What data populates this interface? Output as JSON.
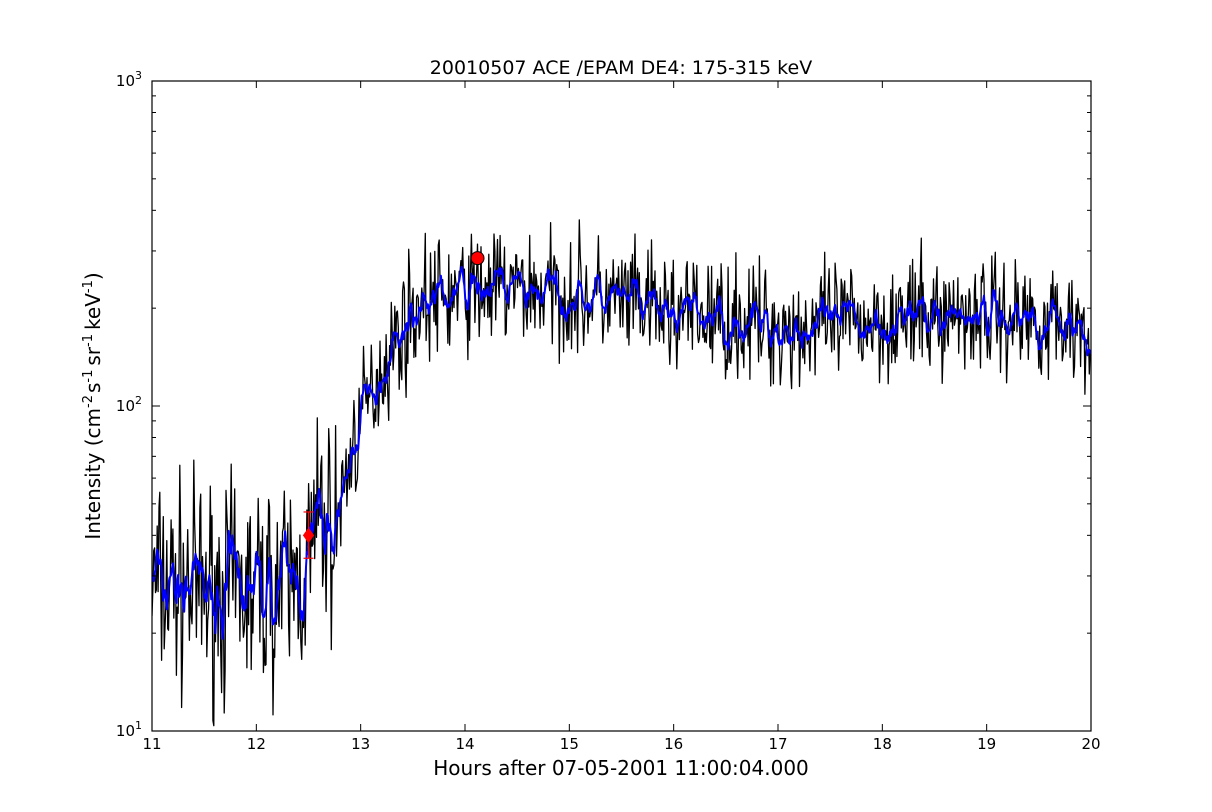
{
  "chart_data": {
    "type": "line",
    "title": "20010507 ACE /EPAM DE4: 175-315 keV",
    "xlabel": "Hours after 07-05-2001 11:00:04.000",
    "ylabel_main": "Intensity (cm",
    "ylabel_parts": [
      "-2",
      "s",
      "-1",
      "sr",
      "-1",
      "keV",
      "-1",
      ")"
    ],
    "xlim": [
      11,
      20
    ],
    "ylim": [
      10,
      1000
    ],
    "yscale": "log",
    "xticks": [
      "11",
      "12",
      "13",
      "14",
      "15",
      "16",
      "17",
      "18",
      "19",
      "20"
    ],
    "yticks": [
      {
        "base": "10",
        "exp": "1"
      },
      {
        "base": "10",
        "exp": "2"
      },
      {
        "base": "10",
        "exp": "3"
      }
    ],
    "grid": false,
    "legend": "none",
    "colors": {
      "raw": "#000000",
      "smoothed": "#0000ff",
      "markers": "#ff0000"
    },
    "series": [
      {
        "style": "raw-jagged",
        "x": [
          11.0,
          11.25,
          11.5,
          11.75,
          12.0,
          12.2,
          12.4,
          12.5,
          12.6,
          12.75,
          12.9,
          13.0,
          13.15,
          13.3,
          13.45,
          13.6,
          13.8,
          14.0,
          14.2,
          14.5,
          14.8,
          15.0,
          15.3,
          15.6,
          15.9,
          16.2,
          16.5,
          16.8,
          17.0,
          17.2,
          17.4,
          17.7,
          18.0,
          18.3,
          18.6,
          18.9,
          19.2,
          19.5,
          19.8,
          20.0
        ],
        "values": [
          28,
          28,
          27,
          27,
          27,
          28,
          29,
          33,
          45,
          40,
          70,
          90,
          120,
          150,
          185,
          210,
          215,
          225,
          230,
          230,
          225,
          220,
          215,
          205,
          195,
          190,
          185,
          180,
          175,
          172,
          175,
          180,
          185,
          185,
          190,
          195,
          190,
          185,
          180,
          175
        ]
      },
      {
        "style": "smoothed",
        "x": [
          11.0,
          11.25,
          11.5,
          11.75,
          12.0,
          12.2,
          12.4,
          12.5,
          12.6,
          12.75,
          12.9,
          13.0,
          13.15,
          13.3,
          13.45,
          13.6,
          13.8,
          14.0,
          14.2,
          14.5,
          14.8,
          15.0,
          15.3,
          15.6,
          15.9,
          16.2,
          16.5,
          16.8,
          17.0,
          17.2,
          17.4,
          17.7,
          18.0,
          18.3,
          18.6,
          18.9,
          19.2,
          19.5,
          19.8,
          20.0
        ],
        "values": [
          28,
          28,
          27,
          27,
          27,
          28,
          29,
          33,
          45,
          40,
          70,
          90,
          120,
          150,
          185,
          210,
          215,
          225,
          230,
          230,
          225,
          220,
          215,
          205,
          195,
          190,
          185,
          180,
          175,
          172,
          175,
          180,
          185,
          185,
          190,
          195,
          190,
          185,
          180,
          175
        ]
      }
    ],
    "markers": [
      {
        "shape": "diamond",
        "x": 12.5,
        "y": 40
      },
      {
        "shape": "circle",
        "x": 14.12,
        "y": 285
      }
    ]
  }
}
